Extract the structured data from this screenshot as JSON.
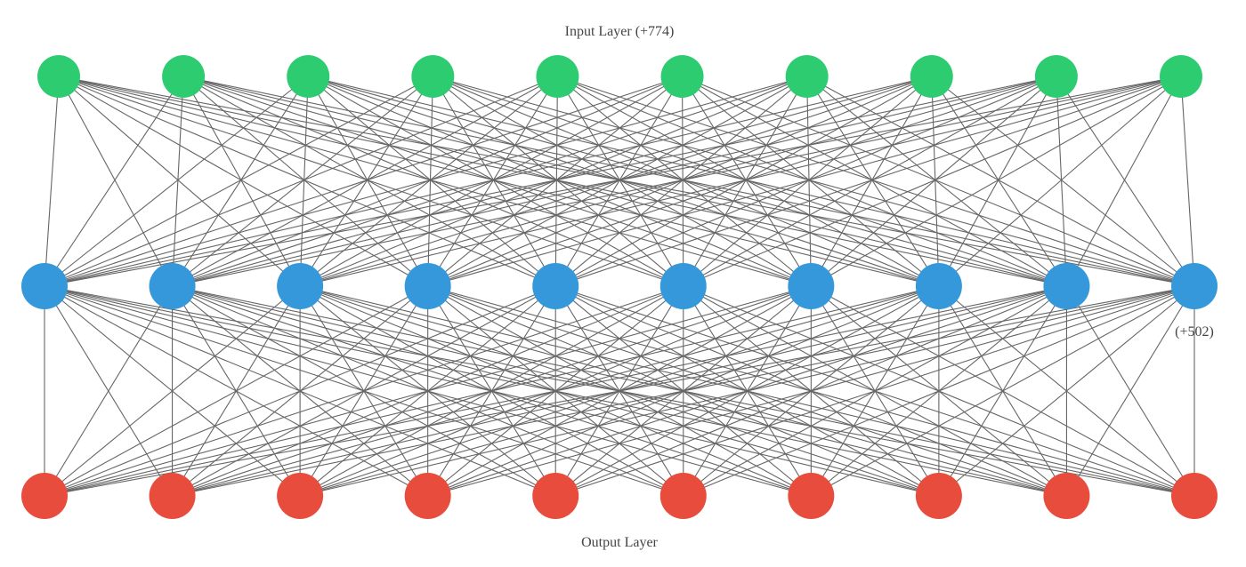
{
  "diagram": {
    "type": "neural-network",
    "colors": {
      "input": "#2ecc71",
      "hidden": "#3498db",
      "output": "#e74c3c",
      "edge": "#666666",
      "text": "#444444"
    },
    "layers": [
      {
        "id": "input",
        "label": "Input Layer (+774)",
        "shown_nodes": 10,
        "color_key": "input"
      },
      {
        "id": "hidden",
        "label": "(+502)",
        "shown_nodes": 10,
        "color_key": "hidden"
      },
      {
        "id": "output",
        "label": "Output Layer",
        "shown_nodes": 10,
        "color_key": "output"
      }
    ],
    "connectivity": "fully-connected"
  }
}
